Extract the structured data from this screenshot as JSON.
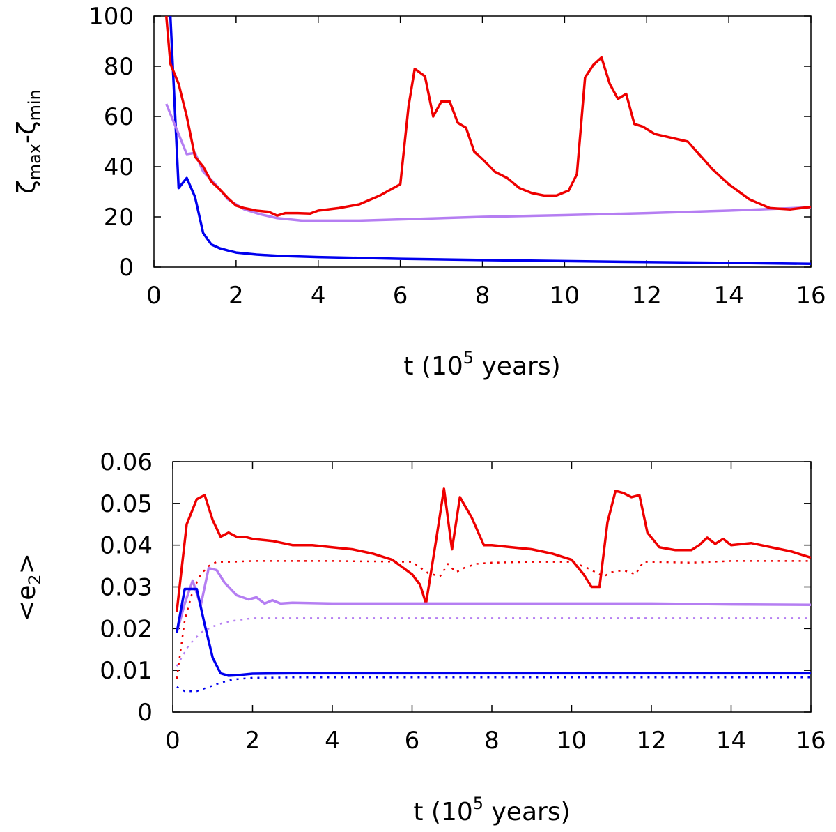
{
  "chart_data": [
    {
      "type": "line",
      "xlabel_main": "t (10",
      "xlabel_sup": "5",
      "xlabel_tail": " years)",
      "ylabel_zeta1": "ζ",
      "ylabel_sub1": "max",
      "ylabel_dash": "-",
      "ylabel_zeta2": "ζ",
      "ylabel_sub2": "min",
      "xlim": [
        0,
        16
      ],
      "ylim": [
        0,
        100
      ],
      "xticks": [
        0,
        2,
        4,
        6,
        8,
        10,
        12,
        14,
        16
      ],
      "xtick_labels": [
        "0",
        "2",
        "4",
        "6",
        "8",
        "10",
        "12",
        "14",
        "16"
      ],
      "yticks": [
        0,
        20,
        40,
        60,
        80,
        100
      ],
      "ytick_labels": [
        "0",
        "20",
        "40",
        "60",
        "80",
        "100"
      ],
      "series": [
        {
          "name": "blue",
          "color": "#0000ee",
          "style": "solid",
          "x": [
            0.4,
            0.6,
            0.8,
            1.0,
            1.2,
            1.4,
            1.6,
            1.8,
            2.0,
            2.5,
            3.0,
            4.0,
            6.0,
            8.0,
            10.0,
            12.0,
            14.0,
            16.0
          ],
          "y": [
            100,
            31.5,
            35.5,
            28,
            13.5,
            9,
            7.5,
            6.6,
            5.8,
            5,
            4.5,
            4,
            3.3,
            2.8,
            2.4,
            2.0,
            1.7,
            1.3
          ]
        },
        {
          "name": "purple",
          "color": "#b57ef2",
          "style": "solid",
          "x": [
            0.3,
            0.5,
            0.8,
            1.0,
            1.2,
            1.5,
            1.8,
            2.0,
            2.2,
            2.6,
            3.0,
            3.6,
            4.0,
            5.0,
            6.0,
            8.0,
            10.0,
            12.0,
            14.0,
            16.0
          ],
          "y": [
            65,
            57,
            45,
            45.5,
            38,
            33,
            27,
            25,
            23,
            21,
            19.5,
            18.5,
            18.5,
            18.5,
            19,
            20,
            20.7,
            21.5,
            22.5,
            23.8
          ]
        },
        {
          "name": "red",
          "color": "#ee0000",
          "style": "solid",
          "x": [
            0.3,
            0.4,
            0.6,
            0.8,
            1.0,
            1.2,
            1.4,
            1.6,
            1.8,
            2.0,
            2.2,
            2.5,
            2.8,
            3.0,
            3.2,
            3.5,
            3.8,
            4.0,
            4.5,
            5.0,
            5.5,
            6.0,
            6.2,
            6.35,
            6.6,
            6.8,
            7.0,
            7.2,
            7.4,
            7.6,
            7.8,
            8.0,
            8.3,
            8.6,
            8.9,
            9.2,
            9.5,
            9.8,
            10.1,
            10.3,
            10.5,
            10.7,
            10.9,
            11.1,
            11.3,
            11.5,
            11.7,
            11.9,
            12.2,
            12.6,
            13.0,
            13.3,
            13.6,
            14.0,
            14.5,
            15.0,
            15.5,
            16.0
          ],
          "y": [
            100,
            81,
            73,
            60,
            44,
            40,
            34,
            31,
            27.5,
            24.5,
            23.5,
            22.5,
            22,
            20.5,
            21.5,
            21.5,
            21.3,
            22.5,
            23.5,
            25,
            28.5,
            33,
            64,
            79,
            76,
            60,
            66,
            66,
            57.5,
            55.5,
            46,
            43,
            38,
            35.5,
            31.5,
            29.5,
            28.5,
            28.5,
            30.5,
            37,
            75.5,
            80.5,
            83.5,
            73,
            67,
            69,
            57,
            56,
            53,
            51.5,
            50,
            44.5,
            39,
            33,
            27,
            23.5,
            23,
            24
          ]
        }
      ]
    },
    {
      "type": "line",
      "xlabel_main": "t (10",
      "xlabel_sup": "5",
      "xlabel_tail": " years)",
      "ylabel_main": "<e",
      "ylabel_sub": "2",
      "ylabel_tail": ">",
      "xlim": [
        0,
        16
      ],
      "ylim": [
        0,
        0.06
      ],
      "xticks": [
        0,
        2,
        4,
        6,
        8,
        10,
        12,
        14,
        16
      ],
      "xtick_labels": [
        "0",
        "2",
        "4",
        "6",
        "8",
        "10",
        "12",
        "14",
        "16"
      ],
      "yticks": [
        0,
        0.01,
        0.02,
        0.03,
        0.04,
        0.05,
        0.06
      ],
      "ytick_labels": [
        "0",
        "0.01",
        "0.02",
        "0.03",
        "0.04",
        "0.05",
        "0.06"
      ],
      "series": [
        {
          "name": "red",
          "color": "#ee0000",
          "style": "solid",
          "x": [
            0.1,
            0.35,
            0.6,
            0.8,
            1.0,
            1.2,
            1.4,
            1.6,
            1.8,
            2.0,
            2.5,
            3.0,
            3.5,
            4.0,
            4.5,
            5.0,
            5.5,
            6.0,
            6.2,
            6.35,
            6.6,
            6.8,
            7.0,
            7.2,
            7.5,
            7.8,
            8.0,
            8.5,
            9.0,
            9.5,
            10.0,
            10.3,
            10.5,
            10.7,
            10.9,
            11.1,
            11.3,
            11.5,
            11.7,
            11.9,
            12.2,
            12.6,
            13.0,
            13.2,
            13.4,
            13.6,
            13.8,
            14.0,
            14.5,
            15.0,
            15.5,
            16.0
          ],
          "y": [
            0.024,
            0.045,
            0.051,
            0.052,
            0.046,
            0.042,
            0.043,
            0.042,
            0.042,
            0.0415,
            0.041,
            0.04,
            0.04,
            0.0395,
            0.039,
            0.038,
            0.0365,
            0.033,
            0.0305,
            0.026,
            0.041,
            0.0535,
            0.039,
            0.0515,
            0.0465,
            0.04,
            0.04,
            0.0395,
            0.039,
            0.038,
            0.0365,
            0.033,
            0.03,
            0.03,
            0.0455,
            0.053,
            0.0525,
            0.0515,
            0.052,
            0.043,
            0.0395,
            0.0388,
            0.0388,
            0.04,
            0.0418,
            0.0403,
            0.0415,
            0.04,
            0.0405,
            0.0395,
            0.0385,
            0.037
          ]
        },
        {
          "name": "red-dotted",
          "color": "#ee0000",
          "style": "dotted",
          "x": [
            0.1,
            0.3,
            0.5,
            0.7,
            0.9,
            1.1,
            1.5,
            2.0,
            4.0,
            6.0,
            6.4,
            6.7,
            6.9,
            7.1,
            7.3,
            7.6,
            8.0,
            9.0,
            10.0,
            10.4,
            10.8,
            11.0,
            11.3,
            11.6,
            11.8,
            12.0,
            13.0,
            14.0,
            15.0,
            16.0
          ],
          "y": [
            0.008,
            0.022,
            0.029,
            0.033,
            0.035,
            0.036,
            0.036,
            0.0362,
            0.0362,
            0.036,
            0.0333,
            0.0325,
            0.0355,
            0.0335,
            0.0345,
            0.0355,
            0.0358,
            0.036,
            0.036,
            0.0345,
            0.0325,
            0.0335,
            0.034,
            0.033,
            0.036,
            0.036,
            0.0358,
            0.0362,
            0.0362,
            0.0362
          ]
        },
        {
          "name": "purple",
          "color": "#b57ef2",
          "style": "solid",
          "x": [
            0.1,
            0.3,
            0.5,
            0.7,
            0.9,
            1.1,
            1.3,
            1.6,
            1.9,
            2.1,
            2.3,
            2.5,
            2.7,
            3.0,
            4.0,
            6.0,
            8.0,
            10.0,
            12.0,
            14.0,
            16.0
          ],
          "y": [
            0.019,
            0.026,
            0.0315,
            0.0255,
            0.0345,
            0.034,
            0.031,
            0.028,
            0.027,
            0.0275,
            0.026,
            0.0268,
            0.026,
            0.0262,
            0.026,
            0.026,
            0.026,
            0.026,
            0.026,
            0.0258,
            0.0257
          ]
        },
        {
          "name": "purple-dotted",
          "color": "#b57ef2",
          "style": "dotted",
          "x": [
            0.1,
            0.4,
            0.7,
            1.0,
            1.3,
            1.6,
            2.0,
            3.0,
            4.0,
            8.0,
            12.0,
            16.0
          ],
          "y": [
            0.011,
            0.016,
            0.019,
            0.0205,
            0.0215,
            0.022,
            0.0225,
            0.0225,
            0.0225,
            0.0225,
            0.0225,
            0.0225
          ]
        },
        {
          "name": "blue",
          "color": "#0000ee",
          "style": "solid",
          "x": [
            0.1,
            0.3,
            0.6,
            0.8,
            1.0,
            1.2,
            1.4,
            1.6,
            2.0,
            3.0,
            4.0,
            8.0,
            12.0,
            16.0
          ],
          "y": [
            0.019,
            0.0295,
            0.0295,
            0.021,
            0.013,
            0.0093,
            0.0087,
            0.0088,
            0.0092,
            0.0093,
            0.0093,
            0.0093,
            0.0093,
            0.0093
          ]
        },
        {
          "name": "blue-dotted",
          "color": "#0000ee",
          "style": "dotted",
          "x": [
            0.1,
            0.3,
            0.6,
            0.9,
            1.2,
            1.5,
            2.0,
            3.0,
            4.0,
            8.0,
            12.0,
            16.0
          ],
          "y": [
            0.006,
            0.005,
            0.005,
            0.006,
            0.007,
            0.0078,
            0.0082,
            0.0083,
            0.0083,
            0.0083,
            0.0083,
            0.0083
          ]
        }
      ]
    }
  ]
}
